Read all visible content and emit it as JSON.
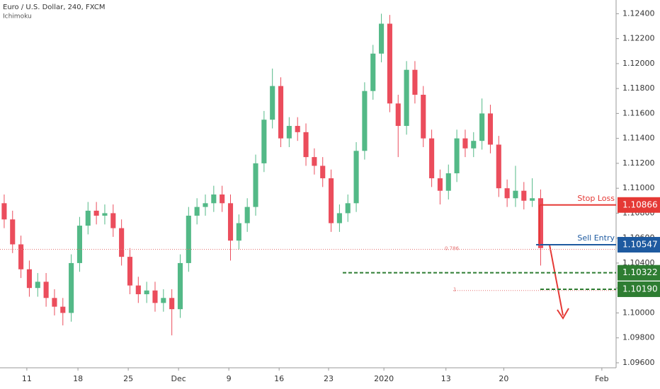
{
  "chart_data": {
    "type": "candlestick",
    "title": "Euro / U.S. Dollar, 240, FXCM",
    "subtitle": "Ichimoku",
    "up_color": "#53b987",
    "down_color": "#eb4d5c",
    "xlim": [
      0,
      73.5
    ],
    "xticks": [
      {
        "value": 3.2,
        "label": "11"
      },
      {
        "value": 9.3,
        "label": "18"
      },
      {
        "value": 15.3,
        "label": "25"
      },
      {
        "value": 21.3,
        "label": "Dec"
      },
      {
        "value": 27.3,
        "label": "9"
      },
      {
        "value": 33.3,
        "label": "16"
      },
      {
        "value": 39.2,
        "label": "23"
      },
      {
        "value": 45.8,
        "label": "2020"
      },
      {
        "value": 53.2,
        "label": "13"
      },
      {
        "value": 60.1,
        "label": "20"
      },
      {
        "value": 71.8,
        "label": "Feb"
      }
    ],
    "ylim": [
      1.0956,
      1.1251
    ],
    "yticks": [
      {
        "value": 1.124,
        "label": "1.12400"
      },
      {
        "value": 1.122,
        "label": "1.12200"
      },
      {
        "value": 1.12,
        "label": "1.12000"
      },
      {
        "value": 1.118,
        "label": "1.11800"
      },
      {
        "value": 1.116,
        "label": "1.11600"
      },
      {
        "value": 1.114,
        "label": "1.11400"
      },
      {
        "value": 1.112,
        "label": "1.11200"
      },
      {
        "value": 1.11,
        "label": "1.11000"
      },
      {
        "value": 1.108,
        "label": "1.10800"
      },
      {
        "value": 1.106,
        "label": "1.10600"
      },
      {
        "value": 1.104,
        "label": "1.10400"
      },
      {
        "value": 1.102,
        "label": "1.10200"
      },
      {
        "value": 1.1,
        "label": "1.10000"
      },
      {
        "value": 1.098,
        "label": "1.09800"
      },
      {
        "value": 1.096,
        "label": "1.09600"
      }
    ],
    "open": [
      1.1088,
      1.1075,
      1.1055,
      1.1035,
      1.102,
      1.1025,
      1.1012,
      1.1005,
      1.1,
      1.104,
      1.107,
      1.1082,
      1.1078,
      1.108,
      1.1068,
      1.1045,
      1.1022,
      1.1015,
      1.1018,
      1.1008,
      1.1012,
      1.1003,
      1.104,
      1.1078,
      1.1085,
      1.1088,
      1.1095,
      1.1088,
      1.1058,
      1.1072,
      1.1085,
      1.112,
      1.1155,
      1.1182,
      1.114,
      1.115,
      1.1145,
      1.1125,
      1.1118,
      1.1108,
      1.1072,
      1.108,
      1.1088,
      1.113,
      1.1178,
      1.1208,
      1.1232,
      1.1168,
      1.115,
      1.1195,
      1.1175,
      1.114,
      1.1108,
      1.1098,
      1.1112,
      1.114,
      1.1132,
      1.1138,
      1.116,
      1.1135,
      1.11,
      1.1092,
      1.1098,
      1.109,
      1.1092
    ],
    "high": [
      1.1095,
      1.1082,
      1.1062,
      1.1042,
      1.1032,
      1.1032,
      1.1019,
      1.1012,
      1.1047,
      1.1077,
      1.1089,
      1.1089,
      1.1087,
      1.1087,
      1.1075,
      1.1052,
      1.1029,
      1.1025,
      1.1025,
      1.1019,
      1.1019,
      1.1047,
      1.1085,
      1.1092,
      1.1095,
      1.1102,
      1.1102,
      1.1095,
      1.1079,
      1.1092,
      1.1127,
      1.1162,
      1.1196,
      1.1189,
      1.1157,
      1.1157,
      1.1152,
      1.1132,
      1.1125,
      1.1115,
      1.1087,
      1.1095,
      1.1137,
      1.1185,
      1.1215,
      1.124,
      1.1239,
      1.1175,
      1.1202,
      1.1202,
      1.1182,
      1.1147,
      1.1115,
      1.1119,
      1.1147,
      1.1147,
      1.1145,
      1.1172,
      1.1167,
      1.1142,
      1.1107,
      1.1118,
      1.1105,
      1.1108,
      1.1099
    ],
    "low": [
      1.1068,
      1.1048,
      1.1028,
      1.1013,
      1.1013,
      1.1005,
      1.0998,
      1.099,
      1.0993,
      1.1033,
      1.1063,
      1.1071,
      1.1071,
      1.1061,
      1.1038,
      1.1015,
      1.1008,
      1.1008,
      1.1001,
      1.1001,
      1.0982,
      1.0996,
      1.1033,
      1.1071,
      1.1078,
      1.1081,
      1.1081,
      1.1042,
      1.1051,
      1.1065,
      1.1078,
      1.1113,
      1.1148,
      1.1133,
      1.1133,
      1.1138,
      1.1118,
      1.1111,
      1.1101,
      1.1065,
      1.1065,
      1.1073,
      1.1081,
      1.1123,
      1.1171,
      1.1201,
      1.1161,
      1.1125,
      1.1143,
      1.1168,
      1.1133,
      1.1101,
      1.1087,
      1.1091,
      1.1105,
      1.1125,
      1.1125,
      1.1131,
      1.1128,
      1.1093,
      1.1085,
      1.1085,
      1.1083,
      1.1085,
      1.1038
    ],
    "close": [
      1.1075,
      1.1055,
      1.1035,
      1.102,
      1.1025,
      1.1012,
      1.1005,
      1.1,
      1.104,
      1.107,
      1.1082,
      1.1078,
      1.108,
      1.1068,
      1.1045,
      1.1022,
      1.1015,
      1.1018,
      1.1008,
      1.1012,
      1.1003,
      1.104,
      1.1078,
      1.1085,
      1.1088,
      1.1095,
      1.1088,
      1.1058,
      1.1072,
      1.1085,
      1.112,
      1.1155,
      1.1182,
      1.114,
      1.115,
      1.1145,
      1.1125,
      1.1118,
      1.1108,
      1.1072,
      1.108,
      1.1088,
      1.113,
      1.1178,
      1.1208,
      1.1232,
      1.1168,
      1.115,
      1.1195,
      1.1175,
      1.114,
      1.1108,
      1.1098,
      1.1112,
      1.114,
      1.1132,
      1.1138,
      1.116,
      1.1135,
      1.11,
      1.1092,
      1.1098,
      1.109,
      1.1092,
      1.1052
    ],
    "levels": [
      {
        "name": "Stop Loss",
        "value": 1.10866,
        "value_label": "1.10866",
        "color": "#e53935",
        "style": "solid"
      },
      {
        "name": "Sell Entry",
        "value": 1.10547,
        "value_label": "1.10547",
        "color": "#1e5aa0",
        "style": "solid"
      },
      {
        "value": 1.10322,
        "value_label": "1.10322",
        "color": "#2e7d32",
        "style": "dashed"
      },
      {
        "value": 1.1019,
        "value_label": "1.10190",
        "color": "#2e7d32",
        "style": "dashed"
      }
    ],
    "fib_levels": [
      {
        "ratio": 0.786,
        "price": 1.1051
      },
      {
        "ratio": 1,
        "price": 1.1018
      }
    ]
  }
}
